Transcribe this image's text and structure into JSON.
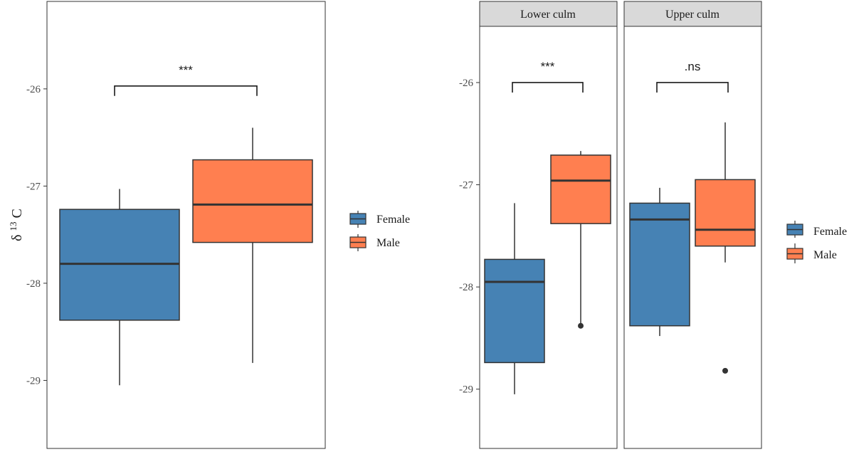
{
  "colors": {
    "female": "#4682b4",
    "male": "#ff7f50",
    "strip": "#d9d9d9",
    "line": "#333333"
  },
  "chart_data": [
    {
      "type": "boxplot",
      "title": "",
      "ylabel": {
        "symbol": "δ",
        "superscript": "13",
        "element": "C"
      },
      "xlabel": "",
      "ylim": [
        -29.7,
        -25.1
      ],
      "yticks": [
        -29,
        -28,
        -27,
        -26
      ],
      "ytick_labels": [
        "-29",
        "-28",
        "-27",
        "-26"
      ],
      "groups": [
        {
          "name": "Female",
          "min": -29.05,
          "q1": -28.38,
          "median": -27.8,
          "q3": -27.24,
          "max": -27.03,
          "outliers": []
        },
        {
          "name": "Male",
          "min": -28.82,
          "q1": -27.58,
          "median": -27.19,
          "q3": -26.73,
          "max": -26.4,
          "outliers": []
        }
      ],
      "significance": {
        "label": "***",
        "y": -25.97
      },
      "legend": {
        "position": "right",
        "entries": [
          "Female",
          "Male"
        ]
      }
    },
    {
      "type": "boxplot",
      "title": "",
      "ylabel": "",
      "xlabel": "",
      "ylim": [
        -29.58,
        -25.45
      ],
      "yticks": [
        -29,
        -28,
        -27,
        -26
      ],
      "ytick_labels": [
        "-29",
        "-28",
        "-27",
        "-26"
      ],
      "facets": [
        {
          "label": "Lower culm",
          "groups": [
            {
              "name": "Female",
              "min": -29.05,
              "q1": -28.74,
              "median": -27.95,
              "q3": -27.73,
              "max": -27.18,
              "outliers": []
            },
            {
              "name": "Male",
              "min": -28.38,
              "q1": -27.38,
              "median": -26.96,
              "q3": -26.71,
              "max": -26.67,
              "outliers": [
                -28.38
              ]
            }
          ],
          "significance": {
            "label": "***",
            "y": -26.0
          }
        },
        {
          "label": "Upper culm",
          "groups": [
            {
              "name": "Female",
              "min": -28.48,
              "q1": -28.38,
              "median": -27.34,
              "q3": -27.18,
              "max": -27.03,
              "outliers": []
            },
            {
              "name": "Male",
              "min": -27.76,
              "q1": -27.6,
              "median": -27.44,
              "q3": -26.95,
              "max": -26.39,
              "outliers": [
                -28.82
              ]
            }
          ],
          "significance": {
            "label": ".ns",
            "y": -26.0
          }
        }
      ],
      "legend": {
        "position": "right",
        "entries": [
          "Female",
          "Male"
        ]
      }
    }
  ]
}
